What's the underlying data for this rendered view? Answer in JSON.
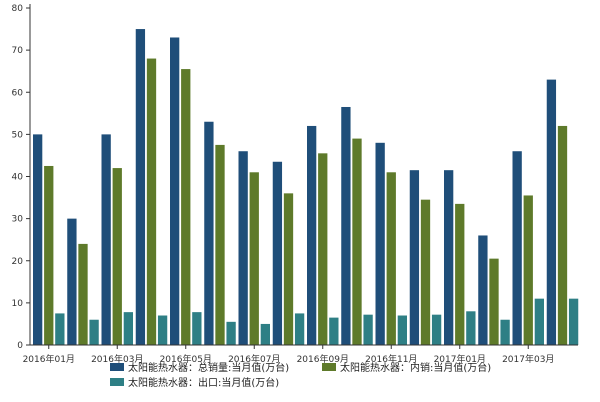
{
  "chart_data": {
    "type": "bar",
    "categories": [
      "2016年01月",
      "2016年02月",
      "2016年03月",
      "2016年04月",
      "2016年05月",
      "2016年06月",
      "2016年07月",
      "2016年08月",
      "2016年09月",
      "2016年10月",
      "2016年11月",
      "2016年12月",
      "2017年01月",
      "2017年02月",
      "2017年03月",
      "2017年04月"
    ],
    "x_tick_labels": [
      "2016年01月",
      "2016年03月",
      "2016年05月",
      "2016年07月",
      "2016年09月",
      "2016年11月",
      "2017年01月",
      "2017年03月"
    ],
    "series": [
      {
        "name": "太阳能热水器：总销量:当月值(万台)",
        "color": "#1f4e79",
        "values": [
          50,
          30,
          50,
          75,
          73,
          53,
          46,
          43.5,
          52,
          56.5,
          48,
          41.5,
          41.5,
          26,
          46,
          63
        ]
      },
      {
        "name": "太阳能热水器：内销:当月值(万台)",
        "color": "#5e7a2a",
        "values": [
          42.5,
          24,
          42,
          68,
          65.5,
          47.5,
          41,
          36,
          45.5,
          49,
          41,
          34.5,
          33.5,
          20.5,
          35.5,
          52
        ]
      },
      {
        "name": "太阳能热水器：出口:当月值(万台)",
        "color": "#2e7f85",
        "values": [
          7.5,
          6,
          7.8,
          7,
          7.8,
          5.5,
          5,
          7.5,
          6.5,
          7.2,
          7,
          7.2,
          8,
          6,
          11,
          11
        ]
      }
    ],
    "y_ticks": [
      0,
      10,
      20,
      30,
      40,
      50,
      60,
      70,
      80
    ],
    "ylim": [
      0,
      80
    ],
    "grid": false,
    "legend_position": "bottom"
  }
}
